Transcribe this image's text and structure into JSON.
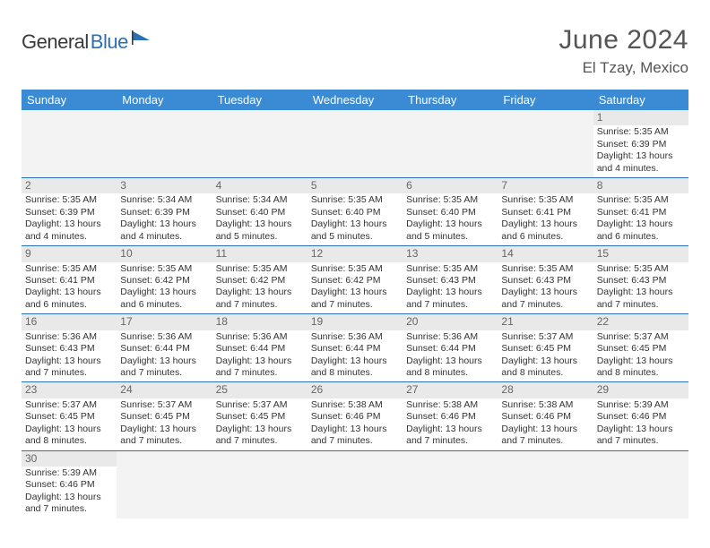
{
  "brand": {
    "part1": "General",
    "part2": "Blue"
  },
  "title": "June 2024",
  "location": "El Tzay, Mexico",
  "colors": {
    "header_bg": "#3b8bd4",
    "header_text": "#ffffff",
    "border": "#2d6fb5",
    "daynum_bg": "#e9e9e9",
    "text": "#333333",
    "brand_gray": "#3a3a3a",
    "brand_blue": "#2d6fb5"
  },
  "weekdays": [
    "Sunday",
    "Monday",
    "Tuesday",
    "Wednesday",
    "Thursday",
    "Friday",
    "Saturday"
  ],
  "weeks": [
    [
      null,
      null,
      null,
      null,
      null,
      null,
      {
        "n": "1",
        "sr": "Sunrise: 5:35 AM",
        "ss": "Sunset: 6:39 PM",
        "d1": "Daylight: 13 hours",
        "d2": "and 4 minutes."
      }
    ],
    [
      {
        "n": "2",
        "sr": "Sunrise: 5:35 AM",
        "ss": "Sunset: 6:39 PM",
        "d1": "Daylight: 13 hours",
        "d2": "and 4 minutes."
      },
      {
        "n": "3",
        "sr": "Sunrise: 5:34 AM",
        "ss": "Sunset: 6:39 PM",
        "d1": "Daylight: 13 hours",
        "d2": "and 4 minutes."
      },
      {
        "n": "4",
        "sr": "Sunrise: 5:34 AM",
        "ss": "Sunset: 6:40 PM",
        "d1": "Daylight: 13 hours",
        "d2": "and 5 minutes."
      },
      {
        "n": "5",
        "sr": "Sunrise: 5:35 AM",
        "ss": "Sunset: 6:40 PM",
        "d1": "Daylight: 13 hours",
        "d2": "and 5 minutes."
      },
      {
        "n": "6",
        "sr": "Sunrise: 5:35 AM",
        "ss": "Sunset: 6:40 PM",
        "d1": "Daylight: 13 hours",
        "d2": "and 5 minutes."
      },
      {
        "n": "7",
        "sr": "Sunrise: 5:35 AM",
        "ss": "Sunset: 6:41 PM",
        "d1": "Daylight: 13 hours",
        "d2": "and 6 minutes."
      },
      {
        "n": "8",
        "sr": "Sunrise: 5:35 AM",
        "ss": "Sunset: 6:41 PM",
        "d1": "Daylight: 13 hours",
        "d2": "and 6 minutes."
      }
    ],
    [
      {
        "n": "9",
        "sr": "Sunrise: 5:35 AM",
        "ss": "Sunset: 6:41 PM",
        "d1": "Daylight: 13 hours",
        "d2": "and 6 minutes."
      },
      {
        "n": "10",
        "sr": "Sunrise: 5:35 AM",
        "ss": "Sunset: 6:42 PM",
        "d1": "Daylight: 13 hours",
        "d2": "and 6 minutes."
      },
      {
        "n": "11",
        "sr": "Sunrise: 5:35 AM",
        "ss": "Sunset: 6:42 PM",
        "d1": "Daylight: 13 hours",
        "d2": "and 7 minutes."
      },
      {
        "n": "12",
        "sr": "Sunrise: 5:35 AM",
        "ss": "Sunset: 6:42 PM",
        "d1": "Daylight: 13 hours",
        "d2": "and 7 minutes."
      },
      {
        "n": "13",
        "sr": "Sunrise: 5:35 AM",
        "ss": "Sunset: 6:43 PM",
        "d1": "Daylight: 13 hours",
        "d2": "and 7 minutes."
      },
      {
        "n": "14",
        "sr": "Sunrise: 5:35 AM",
        "ss": "Sunset: 6:43 PM",
        "d1": "Daylight: 13 hours",
        "d2": "and 7 minutes."
      },
      {
        "n": "15",
        "sr": "Sunrise: 5:35 AM",
        "ss": "Sunset: 6:43 PM",
        "d1": "Daylight: 13 hours",
        "d2": "and 7 minutes."
      }
    ],
    [
      {
        "n": "16",
        "sr": "Sunrise: 5:36 AM",
        "ss": "Sunset: 6:43 PM",
        "d1": "Daylight: 13 hours",
        "d2": "and 7 minutes."
      },
      {
        "n": "17",
        "sr": "Sunrise: 5:36 AM",
        "ss": "Sunset: 6:44 PM",
        "d1": "Daylight: 13 hours",
        "d2": "and 7 minutes."
      },
      {
        "n": "18",
        "sr": "Sunrise: 5:36 AM",
        "ss": "Sunset: 6:44 PM",
        "d1": "Daylight: 13 hours",
        "d2": "and 7 minutes."
      },
      {
        "n": "19",
        "sr": "Sunrise: 5:36 AM",
        "ss": "Sunset: 6:44 PM",
        "d1": "Daylight: 13 hours",
        "d2": "and 8 minutes."
      },
      {
        "n": "20",
        "sr": "Sunrise: 5:36 AM",
        "ss": "Sunset: 6:44 PM",
        "d1": "Daylight: 13 hours",
        "d2": "and 8 minutes."
      },
      {
        "n": "21",
        "sr": "Sunrise: 5:37 AM",
        "ss": "Sunset: 6:45 PM",
        "d1": "Daylight: 13 hours",
        "d2": "and 8 minutes."
      },
      {
        "n": "22",
        "sr": "Sunrise: 5:37 AM",
        "ss": "Sunset: 6:45 PM",
        "d1": "Daylight: 13 hours",
        "d2": "and 8 minutes."
      }
    ],
    [
      {
        "n": "23",
        "sr": "Sunrise: 5:37 AM",
        "ss": "Sunset: 6:45 PM",
        "d1": "Daylight: 13 hours",
        "d2": "and 8 minutes."
      },
      {
        "n": "24",
        "sr": "Sunrise: 5:37 AM",
        "ss": "Sunset: 6:45 PM",
        "d1": "Daylight: 13 hours",
        "d2": "and 7 minutes."
      },
      {
        "n": "25",
        "sr": "Sunrise: 5:37 AM",
        "ss": "Sunset: 6:45 PM",
        "d1": "Daylight: 13 hours",
        "d2": "and 7 minutes."
      },
      {
        "n": "26",
        "sr": "Sunrise: 5:38 AM",
        "ss": "Sunset: 6:46 PM",
        "d1": "Daylight: 13 hours",
        "d2": "and 7 minutes."
      },
      {
        "n": "27",
        "sr": "Sunrise: 5:38 AM",
        "ss": "Sunset: 6:46 PM",
        "d1": "Daylight: 13 hours",
        "d2": "and 7 minutes."
      },
      {
        "n": "28",
        "sr": "Sunrise: 5:38 AM",
        "ss": "Sunset: 6:46 PM",
        "d1": "Daylight: 13 hours",
        "d2": "and 7 minutes."
      },
      {
        "n": "29",
        "sr": "Sunrise: 5:39 AM",
        "ss": "Sunset: 6:46 PM",
        "d1": "Daylight: 13 hours",
        "d2": "and 7 minutes."
      }
    ],
    [
      {
        "n": "30",
        "sr": "Sunrise: 5:39 AM",
        "ss": "Sunset: 6:46 PM",
        "d1": "Daylight: 13 hours",
        "d2": "and 7 minutes."
      },
      null,
      null,
      null,
      null,
      null,
      null
    ]
  ]
}
